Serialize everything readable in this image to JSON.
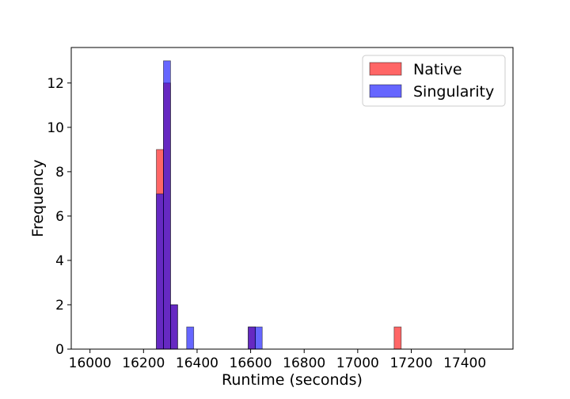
{
  "chart_data": {
    "type": "bar",
    "xlabel": "Runtime (seconds)",
    "ylabel": "Frequency",
    "xlim": [
      15930,
      17580
    ],
    "ylim": [
      0,
      13.6
    ],
    "xticks": [
      16000,
      16200,
      16400,
      16600,
      16800,
      17000,
      17200,
      17400
    ],
    "yticks": [
      0,
      2,
      4,
      6,
      8,
      10,
      12
    ],
    "bin_width": 26.4,
    "series": [
      {
        "name": "Native",
        "color": "#ff0000",
        "alpha": 0.6,
        "bins": [
          {
            "x0": 16248,
            "count": 9
          },
          {
            "x0": 16274.4,
            "count": 12
          },
          {
            "x0": 16300.8,
            "count": 2
          },
          {
            "x0": 16591,
            "count": 1
          },
          {
            "x0": 17136,
            "count": 1
          }
        ]
      },
      {
        "name": "Singularity",
        "color": "#0000ff",
        "alpha": 0.6,
        "bins": [
          {
            "x0": 16248,
            "count": 7
          },
          {
            "x0": 16274.4,
            "count": 13
          },
          {
            "x0": 16300.8,
            "count": 2
          },
          {
            "x0": 16361,
            "count": 1
          },
          {
            "x0": 16591,
            "count": 1
          },
          {
            "x0": 16617,
            "count": 1
          }
        ]
      }
    ],
    "legend_position": "top-right",
    "grid": false
  }
}
